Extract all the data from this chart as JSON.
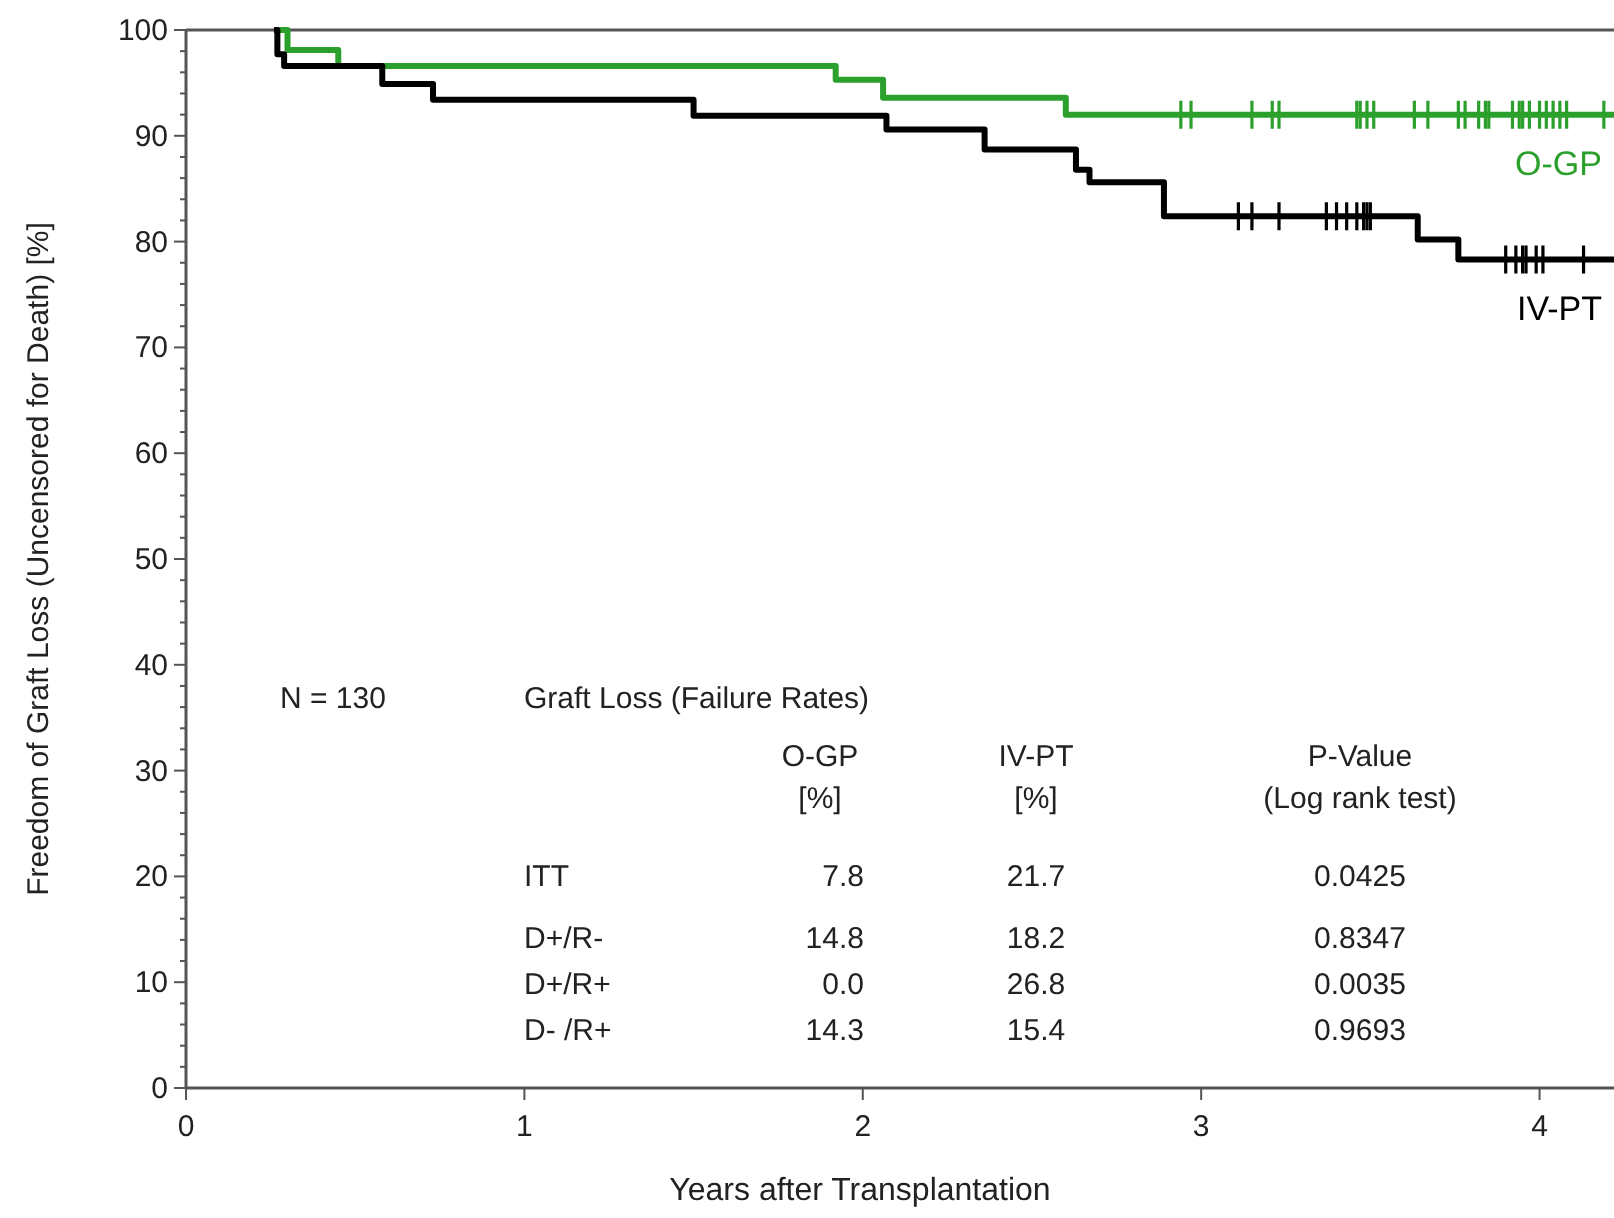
{
  "chart_data": {
    "type": "step",
    "xlabel": "Years after Transplantation",
    "ylabel": "Freedom of Graft Loss (Uncensored for Death) [%]",
    "xlim": [
      0,
      4.22
    ],
    "ylim": [
      0,
      100
    ],
    "xticks": [
      0,
      1,
      2,
      3,
      4
    ],
    "yticks": [
      0,
      {
        "value": 2,
        "label": null
      },
      {
        "value": 4,
        "label": null
      },
      {
        "value": 6,
        "label": null
      },
      {
        "value": 8,
        "label": null
      },
      10,
      {
        "value": 12,
        "label": null
      },
      {
        "value": 14,
        "label": null
      },
      {
        "value": 16,
        "label": null
      },
      {
        "value": 18,
        "label": null
      },
      20,
      {
        "value": 22,
        "label": null
      },
      {
        "value": 24,
        "label": null
      },
      {
        "value": 26,
        "label": null
      },
      {
        "value": 28,
        "label": null
      },
      30,
      {
        "value": 32,
        "label": null
      },
      {
        "value": 34,
        "label": null
      },
      {
        "value": 36,
        "label": null
      },
      {
        "value": 38,
        "label": null
      },
      40,
      {
        "value": 42,
        "label": null
      },
      {
        "value": 44,
        "label": null
      },
      {
        "value": 46,
        "label": null
      },
      {
        "value": 48,
        "label": null
      },
      50,
      {
        "value": 52,
        "label": null
      },
      {
        "value": 54,
        "label": null
      },
      {
        "value": 56,
        "label": null
      },
      {
        "value": 58,
        "label": null
      },
      60,
      {
        "value": 62,
        "label": null
      },
      {
        "value": 64,
        "label": null
      },
      {
        "value": 66,
        "label": null
      },
      {
        "value": 68,
        "label": null
      },
      70,
      {
        "value": 72,
        "label": null
      },
      {
        "value": 74,
        "label": null
      },
      {
        "value": 76,
        "label": null
      },
      {
        "value": 78,
        "label": null
      },
      80,
      {
        "value": 82,
        "label": null
      },
      {
        "value": 84,
        "label": null
      },
      {
        "value": 86,
        "label": null
      },
      {
        "value": 88,
        "label": null
      },
      90,
      {
        "value": 92,
        "label": null
      },
      {
        "value": 94,
        "label": null
      },
      {
        "value": 96,
        "label": null
      },
      {
        "value": 98,
        "label": null
      },
      100
    ],
    "grid": false,
    "legend": "right",
    "line_style": "solid",
    "series": [
      {
        "name": "O-GP",
        "color": "#2ca02c",
        "x": [
          0.27,
          0.3,
          0.45,
          1.92,
          2.06,
          2.6,
          4.22
        ],
        "values": [
          100,
          98.1,
          96.6,
          95.3,
          93.6,
          92.0,
          92.0
        ]
      },
      {
        "name": "IV-PT",
        "color": "#000000",
        "x": [
          0.26,
          0.27,
          0.29,
          0.58,
          0.73,
          1.5,
          2.07,
          2.36,
          2.63,
          2.67,
          2.89,
          3.64,
          3.76,
          4.22
        ],
        "values": [
          100,
          97.7,
          96.6,
          94.9,
          93.4,
          91.9,
          90.6,
          88.7,
          86.8,
          85.6,
          82.4,
          80.2,
          78.3,
          78.3
        ]
      },
      {
        "color": "#2ca02c",
        "type": "scatter",
        "marker": "cross",
        "x": [
          2.94,
          2.97,
          3.15,
          3.21,
          3.23,
          3.46,
          3.47,
          3.49,
          3.51,
          3.63,
          3.67,
          3.76,
          3.78,
          3.82,
          3.84,
          3.85,
          3.92,
          3.94,
          3.95,
          3.97,
          4.0,
          4.02,
          4.04,
          4.06,
          4.08,
          4.19
        ],
        "values": [
          92,
          92,
          92,
          92,
          92,
          92,
          92,
          92,
          92,
          92,
          92,
          92,
          92,
          92,
          92,
          92,
          92,
          92,
          92,
          92,
          92,
          92,
          92,
          92,
          92,
          92
        ]
      },
      {
        "color": "#000000",
        "type": "scatter",
        "marker": "cross",
        "x": [
          3.11,
          3.15,
          3.23,
          3.37,
          3.4,
          3.43,
          3.46,
          3.48,
          3.49,
          3.5,
          3.9,
          3.93,
          3.95,
          3.96,
          3.99,
          4.01,
          4.13
        ],
        "values": [
          82.4,
          82.4,
          82.4,
          82.4,
          82.4,
          82.4,
          82.4,
          82.4,
          82.4,
          82.4,
          78.3,
          78.3,
          78.3,
          78.3,
          78.3,
          78.3,
          78.3
        ]
      }
    ],
    "annotations": [
      "N = 130",
      "Graft Loss (Failure Rates)",
      "O-GP",
      "[%]",
      "IV-PT",
      "[%]",
      "P-Value",
      "(Log rank test)",
      "ITT",
      "7.8",
      "21.7",
      "0.0425",
      "D+/R-",
      "14.8",
      "18.2",
      "0.8347",
      "D+/R+",
      "0.0",
      "26.8",
      "0.0035",
      "D- /R+",
      "14.3",
      "15.4",
      "0.9693"
    ]
  }
}
